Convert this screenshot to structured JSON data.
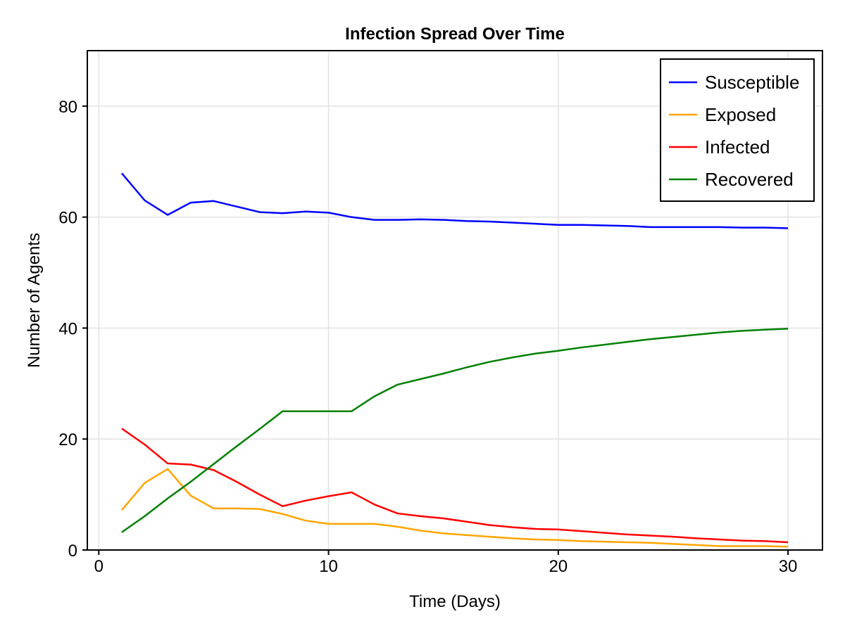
{
  "chart_data": {
    "type": "line",
    "title": "Infection Spread Over Time",
    "xlabel": "Time (Days)",
    "ylabel": "Number of Agents",
    "xlim": [
      -0.5,
      31.5
    ],
    "ylim": [
      0,
      90
    ],
    "xticks": [
      0,
      10,
      20,
      30
    ],
    "yticks": [
      0,
      20,
      40,
      60,
      80
    ],
    "grid": true,
    "legend_position": "top-right",
    "x": [
      1,
      2,
      3,
      4,
      5,
      6,
      7,
      8,
      9,
      10,
      11,
      12,
      13,
      14,
      15,
      16,
      17,
      18,
      19,
      20,
      21,
      22,
      23,
      24,
      25,
      26,
      27,
      28,
      29,
      30
    ],
    "series": [
      {
        "name": "Susceptible",
        "color": "#0000ff",
        "values": [
          67.9,
          63.0,
          60.4,
          62.6,
          62.9,
          61.9,
          60.9,
          60.7,
          61.0,
          60.8,
          60.0,
          59.5,
          59.5,
          59.6,
          59.5,
          59.3,
          59.2,
          59.0,
          58.8,
          58.6,
          58.6,
          58.5,
          58.4,
          58.2,
          58.2,
          58.2,
          58.2,
          58.1,
          58.1,
          58.0
        ]
      },
      {
        "name": "Exposed",
        "color": "#ffa500",
        "values": [
          7.2,
          12.1,
          14.6,
          9.8,
          7.5,
          7.5,
          7.4,
          6.5,
          5.3,
          4.7,
          4.7,
          4.7,
          4.2,
          3.5,
          3.0,
          2.7,
          2.4,
          2.1,
          1.9,
          1.8,
          1.6,
          1.5,
          1.4,
          1.3,
          1.1,
          0.9,
          0.7,
          0.7,
          0.7,
          0.6
        ]
      },
      {
        "name": "Infected",
        "color": "#ff0000",
        "values": [
          21.9,
          19.0,
          15.6,
          15.4,
          14.4,
          12.3,
          10.0,
          7.9,
          8.9,
          9.7,
          10.4,
          8.2,
          6.6,
          6.1,
          5.7,
          5.1,
          4.5,
          4.1,
          3.8,
          3.7,
          3.4,
          3.1,
          2.8,
          2.6,
          2.4,
          2.1,
          1.9,
          1.7,
          1.6,
          1.4
        ]
      },
      {
        "name": "Recovered",
        "color": "#008000",
        "values": [
          3.2,
          6.1,
          9.3,
          12.3,
          15.5,
          18.7,
          21.8,
          25.0,
          25.0,
          25.0,
          25.0,
          27.7,
          29.8,
          30.8,
          31.8,
          32.9,
          33.9,
          34.7,
          35.4,
          35.9,
          36.5,
          37.0,
          37.5,
          38.0,
          38.4,
          38.8,
          39.2,
          39.5,
          39.7,
          39.9
        ]
      }
    ]
  }
}
